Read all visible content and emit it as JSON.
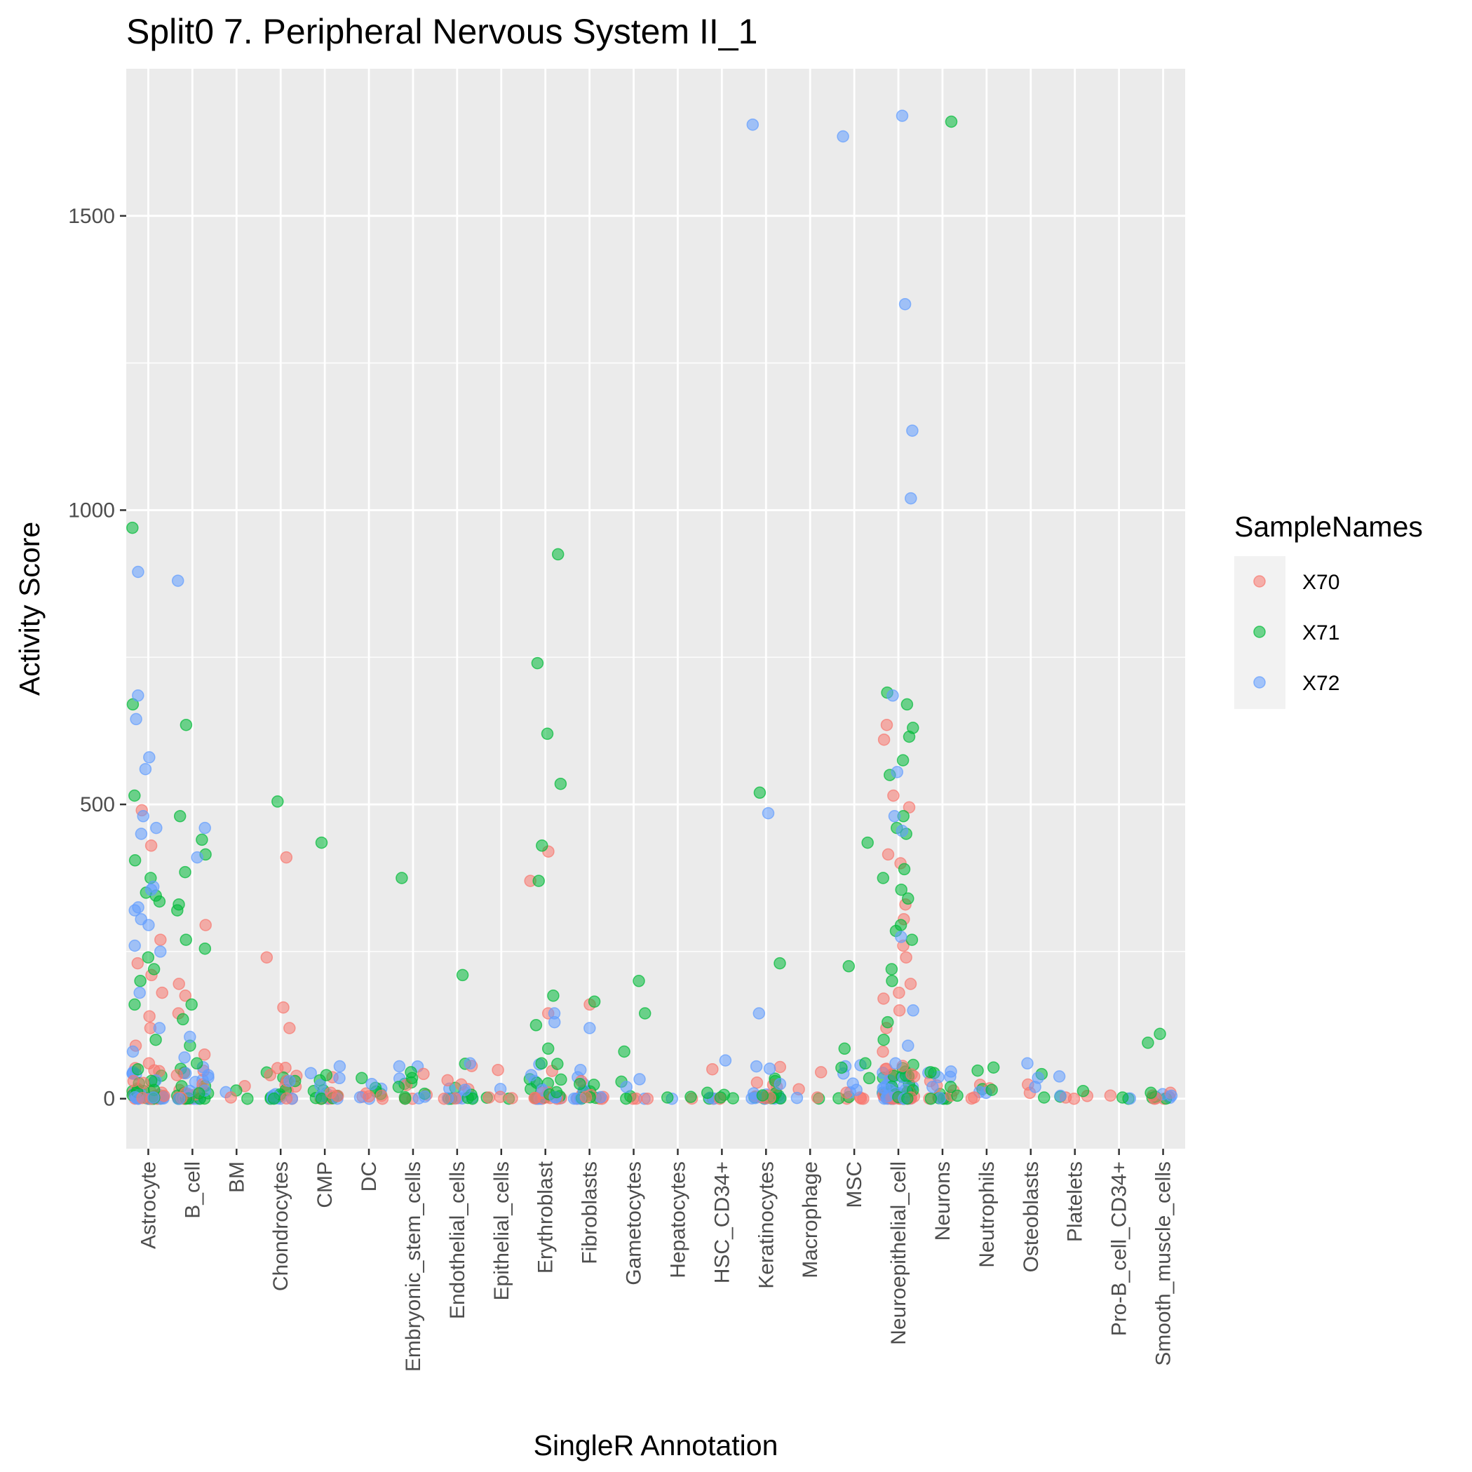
{
  "chart_data": {
    "type": "scatter",
    "title": "Split0 7. Peripheral Nervous System II_1",
    "xlabel": "SingleR Annotation",
    "ylabel": "Activity Score",
    "ylim": [
      -85,
      1750
    ],
    "yticks": [
      0,
      500,
      1000,
      1500
    ],
    "grid": true,
    "legend": {
      "title": "SampleNames",
      "placement": "right",
      "entries": [
        {
          "name": "X70",
          "color": "#F8766D"
        },
        {
          "name": "X71",
          "color": "#00BA38"
        },
        {
          "name": "X72",
          "color": "#619CFF"
        }
      ]
    },
    "categories": [
      "Astrocyte",
      "B_cell",
      "BM",
      "Chondrocytes",
      "CMP",
      "DC",
      "Embryonic_stem_cells",
      "Endothelial_cells",
      "Epithelial_cells",
      "Erythroblast",
      "Fibroblasts",
      "Gametocytes",
      "Hepatocytes",
      "HSC_CD34+",
      "Keratinocytes",
      "Macrophage",
      "MSC",
      "Neuroepithelial_cell",
      "Neurons",
      "Neutrophils",
      "Osteoblasts",
      "Platelets",
      "Pro-B_cell_CD34+",
      "Smooth_muscle_cells"
    ],
    "series": [
      {
        "name": "X70",
        "points": [
          [
            "Astrocyte",
            490
          ],
          [
            "Astrocyte",
            430
          ],
          [
            "Astrocyte",
            270
          ],
          [
            "Astrocyte",
            230
          ],
          [
            "Astrocyte",
            210
          ],
          [
            "Astrocyte",
            180
          ],
          [
            "Astrocyte",
            140
          ],
          [
            "Astrocyte",
            120
          ],
          [
            "Astrocyte",
            90
          ],
          [
            "Astrocyte",
            60
          ],
          [
            "Astrocyte",
            30
          ],
          [
            "B_cell",
            295
          ],
          [
            "B_cell",
            195
          ],
          [
            "B_cell",
            175
          ],
          [
            "B_cell",
            145
          ],
          [
            "B_cell",
            75
          ],
          [
            "B_cell",
            40
          ],
          [
            "BM",
            2
          ],
          [
            "Chondrocytes",
            410
          ],
          [
            "Chondrocytes",
            240
          ],
          [
            "Chondrocytes",
            155
          ],
          [
            "Chondrocytes",
            120
          ],
          [
            "Chondrocytes",
            40
          ],
          [
            "CMP",
            10
          ],
          [
            "DC",
            5
          ],
          [
            "Epithelial_cells",
            2
          ],
          [
            "Epithelial_cells",
            3
          ],
          [
            "Erythroblast",
            420
          ],
          [
            "Erythroblast",
            370
          ],
          [
            "Erythroblast",
            145
          ],
          [
            "Fibroblasts",
            160
          ],
          [
            "Macrophage",
            45
          ],
          [
            "Macrophage",
            2
          ],
          [
            "Neuroepithelial_cell",
            635
          ],
          [
            "Neuroepithelial_cell",
            610
          ],
          [
            "Neuroepithelial_cell",
            515
          ],
          [
            "Neuroepithelial_cell",
            495
          ],
          [
            "Neuroepithelial_cell",
            415
          ],
          [
            "Neuroepithelial_cell",
            400
          ],
          [
            "Neuroepithelial_cell",
            330
          ],
          [
            "Neuroepithelial_cell",
            305
          ],
          [
            "Neuroepithelial_cell",
            260
          ],
          [
            "Neuroepithelial_cell",
            240
          ],
          [
            "Neuroepithelial_cell",
            195
          ],
          [
            "Neuroepithelial_cell",
            180
          ],
          [
            "Neuroepithelial_cell",
            170
          ],
          [
            "Neuroepithelial_cell",
            150
          ],
          [
            "Neuroepithelial_cell",
            120
          ],
          [
            "Neuroepithelial_cell",
            80
          ],
          [
            "Neutrophils",
            2
          ],
          [
            "Osteoblasts",
            10
          ],
          [
            "Platelets",
            2
          ],
          [
            "Smooth_muscle_cells",
            10
          ]
        ]
      },
      {
        "name": "X71",
        "points": [
          [
            "Astrocyte",
            970
          ],
          [
            "Astrocyte",
            670
          ],
          [
            "Astrocyte",
            515
          ],
          [
            "Astrocyte",
            405
          ],
          [
            "Astrocyte",
            375
          ],
          [
            "Astrocyte",
            350
          ],
          [
            "Astrocyte",
            345
          ],
          [
            "Astrocyte",
            335
          ],
          [
            "Astrocyte",
            240
          ],
          [
            "Astrocyte",
            220
          ],
          [
            "Astrocyte",
            200
          ],
          [
            "Astrocyte",
            160
          ],
          [
            "Astrocyte",
            100
          ],
          [
            "Astrocyte",
            50
          ],
          [
            "B_cell",
            635
          ],
          [
            "B_cell",
            480
          ],
          [
            "B_cell",
            440
          ],
          [
            "B_cell",
            415
          ],
          [
            "B_cell",
            385
          ],
          [
            "B_cell",
            330
          ],
          [
            "B_cell",
            320
          ],
          [
            "B_cell",
            270
          ],
          [
            "B_cell",
            255
          ],
          [
            "B_cell",
            160
          ],
          [
            "B_cell",
            135
          ],
          [
            "B_cell",
            90
          ],
          [
            "B_cell",
            60
          ],
          [
            "BM",
            0
          ],
          [
            "Chondrocytes",
            505
          ],
          [
            "Chondrocytes",
            30
          ],
          [
            "CMP",
            435
          ],
          [
            "CMP",
            40
          ],
          [
            "DC",
            35
          ],
          [
            "Embryonic_stem_cells",
            375
          ],
          [
            "Embryonic_stem_cells",
            45
          ],
          [
            "Embryonic_stem_cells",
            35
          ],
          [
            "Embryonic_stem_cells",
            20
          ],
          [
            "Endothelial_cells",
            210
          ],
          [
            "Erythroblast",
            925
          ],
          [
            "Erythroblast",
            740
          ],
          [
            "Erythroblast",
            620
          ],
          [
            "Erythroblast",
            535
          ],
          [
            "Erythroblast",
            430
          ],
          [
            "Erythroblast",
            370
          ],
          [
            "Erythroblast",
            175
          ],
          [
            "Erythroblast",
            125
          ],
          [
            "Erythroblast",
            85
          ],
          [
            "Erythroblast",
            60
          ],
          [
            "Fibroblasts",
            165
          ],
          [
            "Fibroblasts",
            25
          ],
          [
            "Gametocytes",
            200
          ],
          [
            "Gametocytes",
            145
          ],
          [
            "Gametocytes",
            80
          ],
          [
            "Hepatocytes",
            2
          ],
          [
            "HSC_CD34+",
            10
          ],
          [
            "HSC_CD34+",
            2
          ],
          [
            "Keratinocytes",
            520
          ],
          [
            "Keratinocytes",
            230
          ],
          [
            "Keratinocytes",
            30
          ],
          [
            "MSC",
            435
          ],
          [
            "MSC",
            225
          ],
          [
            "MSC",
            85
          ],
          [
            "Neuroepithelial_cell",
            690
          ],
          [
            "Neuroepithelial_cell",
            670
          ],
          [
            "Neuroepithelial_cell",
            630
          ],
          [
            "Neuroepithelial_cell",
            615
          ],
          [
            "Neuroepithelial_cell",
            575
          ],
          [
            "Neuroepithelial_cell",
            550
          ],
          [
            "Neuroepithelial_cell",
            480
          ],
          [
            "Neuroepithelial_cell",
            460
          ],
          [
            "Neuroepithelial_cell",
            450
          ],
          [
            "Neuroepithelial_cell",
            390
          ],
          [
            "Neuroepithelial_cell",
            375
          ],
          [
            "Neuroepithelial_cell",
            355
          ],
          [
            "Neuroepithelial_cell",
            340
          ],
          [
            "Neuroepithelial_cell",
            295
          ],
          [
            "Neuroepithelial_cell",
            285
          ],
          [
            "Neuroepithelial_cell",
            270
          ],
          [
            "Neuroepithelial_cell",
            220
          ],
          [
            "Neuroepithelial_cell",
            200
          ],
          [
            "Neuroepithelial_cell",
            130
          ],
          [
            "Neuroepithelial_cell",
            100
          ],
          [
            "Neurons",
            1660
          ],
          [
            "Neurons",
            45
          ],
          [
            "Neurons",
            20
          ],
          [
            "Neutrophils",
            15
          ],
          [
            "Osteoblasts",
            2
          ],
          [
            "Pro-B_cell_CD34+",
            2
          ],
          [
            "Smooth_muscle_cells",
            110
          ],
          [
            "Smooth_muscle_cells",
            95
          ],
          [
            "Smooth_muscle_cells",
            10
          ]
        ]
      },
      {
        "name": "X72",
        "points": [
          [
            "Astrocyte",
            895
          ],
          [
            "Astrocyte",
            685
          ],
          [
            "Astrocyte",
            645
          ],
          [
            "Astrocyte",
            580
          ],
          [
            "Astrocyte",
            560
          ],
          [
            "Astrocyte",
            480
          ],
          [
            "Astrocyte",
            460
          ],
          [
            "Astrocyte",
            450
          ],
          [
            "Astrocyte",
            360
          ],
          [
            "Astrocyte",
            355
          ],
          [
            "Astrocyte",
            325
          ],
          [
            "Astrocyte",
            320
          ],
          [
            "Astrocyte",
            305
          ],
          [
            "Astrocyte",
            295
          ],
          [
            "Astrocyte",
            260
          ],
          [
            "Astrocyte",
            250
          ],
          [
            "Astrocyte",
            180
          ],
          [
            "Astrocyte",
            120
          ],
          [
            "Astrocyte",
            80
          ],
          [
            "B_cell",
            880
          ],
          [
            "B_cell",
            460
          ],
          [
            "B_cell",
            410
          ],
          [
            "B_cell",
            105
          ],
          [
            "B_cell",
            70
          ],
          [
            "B_cell",
            40
          ],
          [
            "Chondrocytes",
            30
          ],
          [
            "CMP",
            55
          ],
          [
            "CMP",
            35
          ],
          [
            "DC",
            25
          ],
          [
            "Endothelial_cells",
            60
          ],
          [
            "Endothelial_cells",
            15
          ],
          [
            "Erythroblast",
            145
          ],
          [
            "Erythroblast",
            130
          ],
          [
            "Erythroblast",
            40
          ],
          [
            "Fibroblasts",
            120
          ],
          [
            "Gametocytes",
            20
          ],
          [
            "HSC_CD34+",
            65
          ],
          [
            "Keratinocytes",
            1655
          ],
          [
            "Keratinocytes",
            485
          ],
          [
            "Keratinocytes",
            145
          ],
          [
            "Keratinocytes",
            25
          ],
          [
            "MSC",
            1635
          ],
          [
            "MSC",
            15
          ],
          [
            "Neuroepithelial_cell",
            1670
          ],
          [
            "Neuroepithelial_cell",
            1350
          ],
          [
            "Neuroepithelial_cell",
            1135
          ],
          [
            "Neuroepithelial_cell",
            1020
          ],
          [
            "Neuroepithelial_cell",
            685
          ],
          [
            "Neuroepithelial_cell",
            555
          ],
          [
            "Neuroepithelial_cell",
            480
          ],
          [
            "Neuroepithelial_cell",
            455
          ],
          [
            "Neuroepithelial_cell",
            275
          ],
          [
            "Neuroepithelial_cell",
            150
          ],
          [
            "Neuroepithelial_cell",
            90
          ],
          [
            "Neuroepithelial_cell",
            60
          ],
          [
            "Neurons",
            20
          ],
          [
            "Osteoblasts",
            60
          ],
          [
            "Osteoblasts",
            20
          ],
          [
            "Platelets",
            5
          ],
          [
            "Smooth_muscle_cells",
            5
          ]
        ]
      }
    ],
    "dense_baseline": {
      "note": "dense clusters of overlapping points near zero",
      "counts": {
        "Astrocyte": 60,
        "B_cell": 45,
        "BM": 3,
        "Chondrocytes": 25,
        "CMP": 20,
        "DC": 10,
        "Embryonic_stem_cells": 15,
        "Endothelial_cells": 20,
        "Epithelial_cells": 5,
        "Erythroblast": 35,
        "Fibroblasts": 25,
        "Gametocytes": 8,
        "Hepatocytes": 3,
        "HSC_CD34+": 8,
        "Keratinocytes": 30,
        "Macrophage": 3,
        "MSC": 15,
        "Neuroepithelial_cell": 90,
        "Neurons": 20,
        "Neutrophils": 8,
        "Osteoblasts": 3,
        "Platelets": 5,
        "Pro-B_cell_CD34+": 3,
        "Smooth_muscle_cells": 10
      },
      "max_value": 60
    }
  }
}
